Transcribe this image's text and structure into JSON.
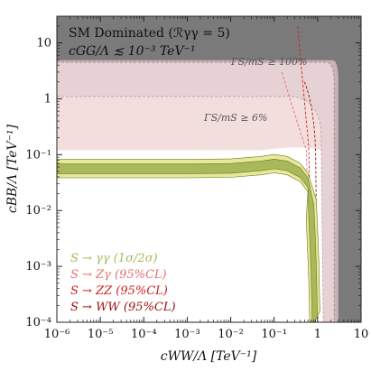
{
  "chart_data": {
    "type": "area",
    "title": "SM Dominated (ℛγγ = 5)",
    "subtitle": "cGG/Λ ≲ 10⁻³ TeV⁻¹",
    "xlabel": "cWW/Λ  [TeV⁻¹]",
    "ylabel": "cBB/Λ  [TeV⁻¹]",
    "xscale": "log",
    "yscale": "log",
    "xlim": [
      1e-06,
      10
    ],
    "ylim": [
      0.0001,
      30
    ],
    "x_ticks": [
      {
        "value": 1e-06,
        "label": "10⁻⁶"
      },
      {
        "value": 1e-05,
        "label": "10⁻⁵"
      },
      {
        "value": 0.0001,
        "label": "10⁻⁴"
      },
      {
        "value": 0.001,
        "label": "10⁻³"
      },
      {
        "value": 0.01,
        "label": "10⁻²"
      },
      {
        "value": 0.1,
        "label": "10⁻¹"
      },
      {
        "value": 1,
        "label": "1"
      },
      {
        "value": 10,
        "label": "10"
      }
    ],
    "y_ticks": [
      {
        "value": 0.0001,
        "label": "10⁻⁴"
      },
      {
        "value": 0.001,
        "label": "10⁻³"
      },
      {
        "value": 0.01,
        "label": "10⁻²"
      },
      {
        "value": 0.1,
        "label": "10⁻¹"
      },
      {
        "value": 1,
        "label": "1"
      },
      {
        "value": 10,
        "label": "10"
      }
    ],
    "annotations": [
      {
        "text": "ΓS/mS ≥ 100%",
        "x": 0.35,
        "y": 6.2
      },
      {
        "text": "ΓS/mS ≥ 6%",
        "x": 0.12,
        "y": 1.35
      }
    ],
    "regions": [
      {
        "name": "excluded-gray",
        "color": "#7a7a7a",
        "description": "",
        "bounds": {
          "x_max_boundary": 3,
          "y_max_boundary": 5
        }
      },
      {
        "name": "width-100",
        "color": "#c9b3b5",
        "points": [
          [
            1e-06,
            4.5
          ],
          [
            1,
            4.5
          ],
          [
            2.5,
            3.5
          ],
          [
            3,
            1
          ],
          [
            3,
            0.0001
          ],
          [
            10,
            0.0001
          ],
          [
            10,
            30
          ],
          [
            1e-06,
            30
          ]
        ]
      },
      {
        "name": "width-6",
        "color": "#f3dede",
        "points": [
          [
            1e-06,
            1.1
          ],
          [
            0.1,
            1.1
          ],
          [
            0.35,
            0.9
          ],
          [
            0.5,
            0.4
          ],
          [
            0.6,
            0.15
          ],
          [
            0.7,
            0.0001
          ]
        ]
      }
    ],
    "series": [
      {
        "name": "S → γγ (1σ/2σ)",
        "color": "#a8b85a",
        "band2_color": "#e8e89a",
        "x": [
          1e-06,
          1e-05,
          0.0001,
          0.001,
          0.01,
          0.05,
          0.1,
          0.2,
          0.4,
          0.6,
          0.7,
          0.75,
          0.8,
          0.85
        ],
        "y": [
          0.053,
          0.053,
          0.053,
          0.053,
          0.054,
          0.06,
          0.065,
          0.06,
          0.045,
          0.03,
          0.01,
          0.003,
          0.0008,
          0.0001
        ]
      },
      {
        "name": "S → Zγ (95%CL)",
        "color": "#e87070"
      },
      {
        "name": "S → ZZ (95%CL)",
        "color": "#d02020"
      },
      {
        "name": "S → WW (95%CL)",
        "color": "#a01010"
      }
    ],
    "legend_position": "bottom-left",
    "grid": false
  }
}
